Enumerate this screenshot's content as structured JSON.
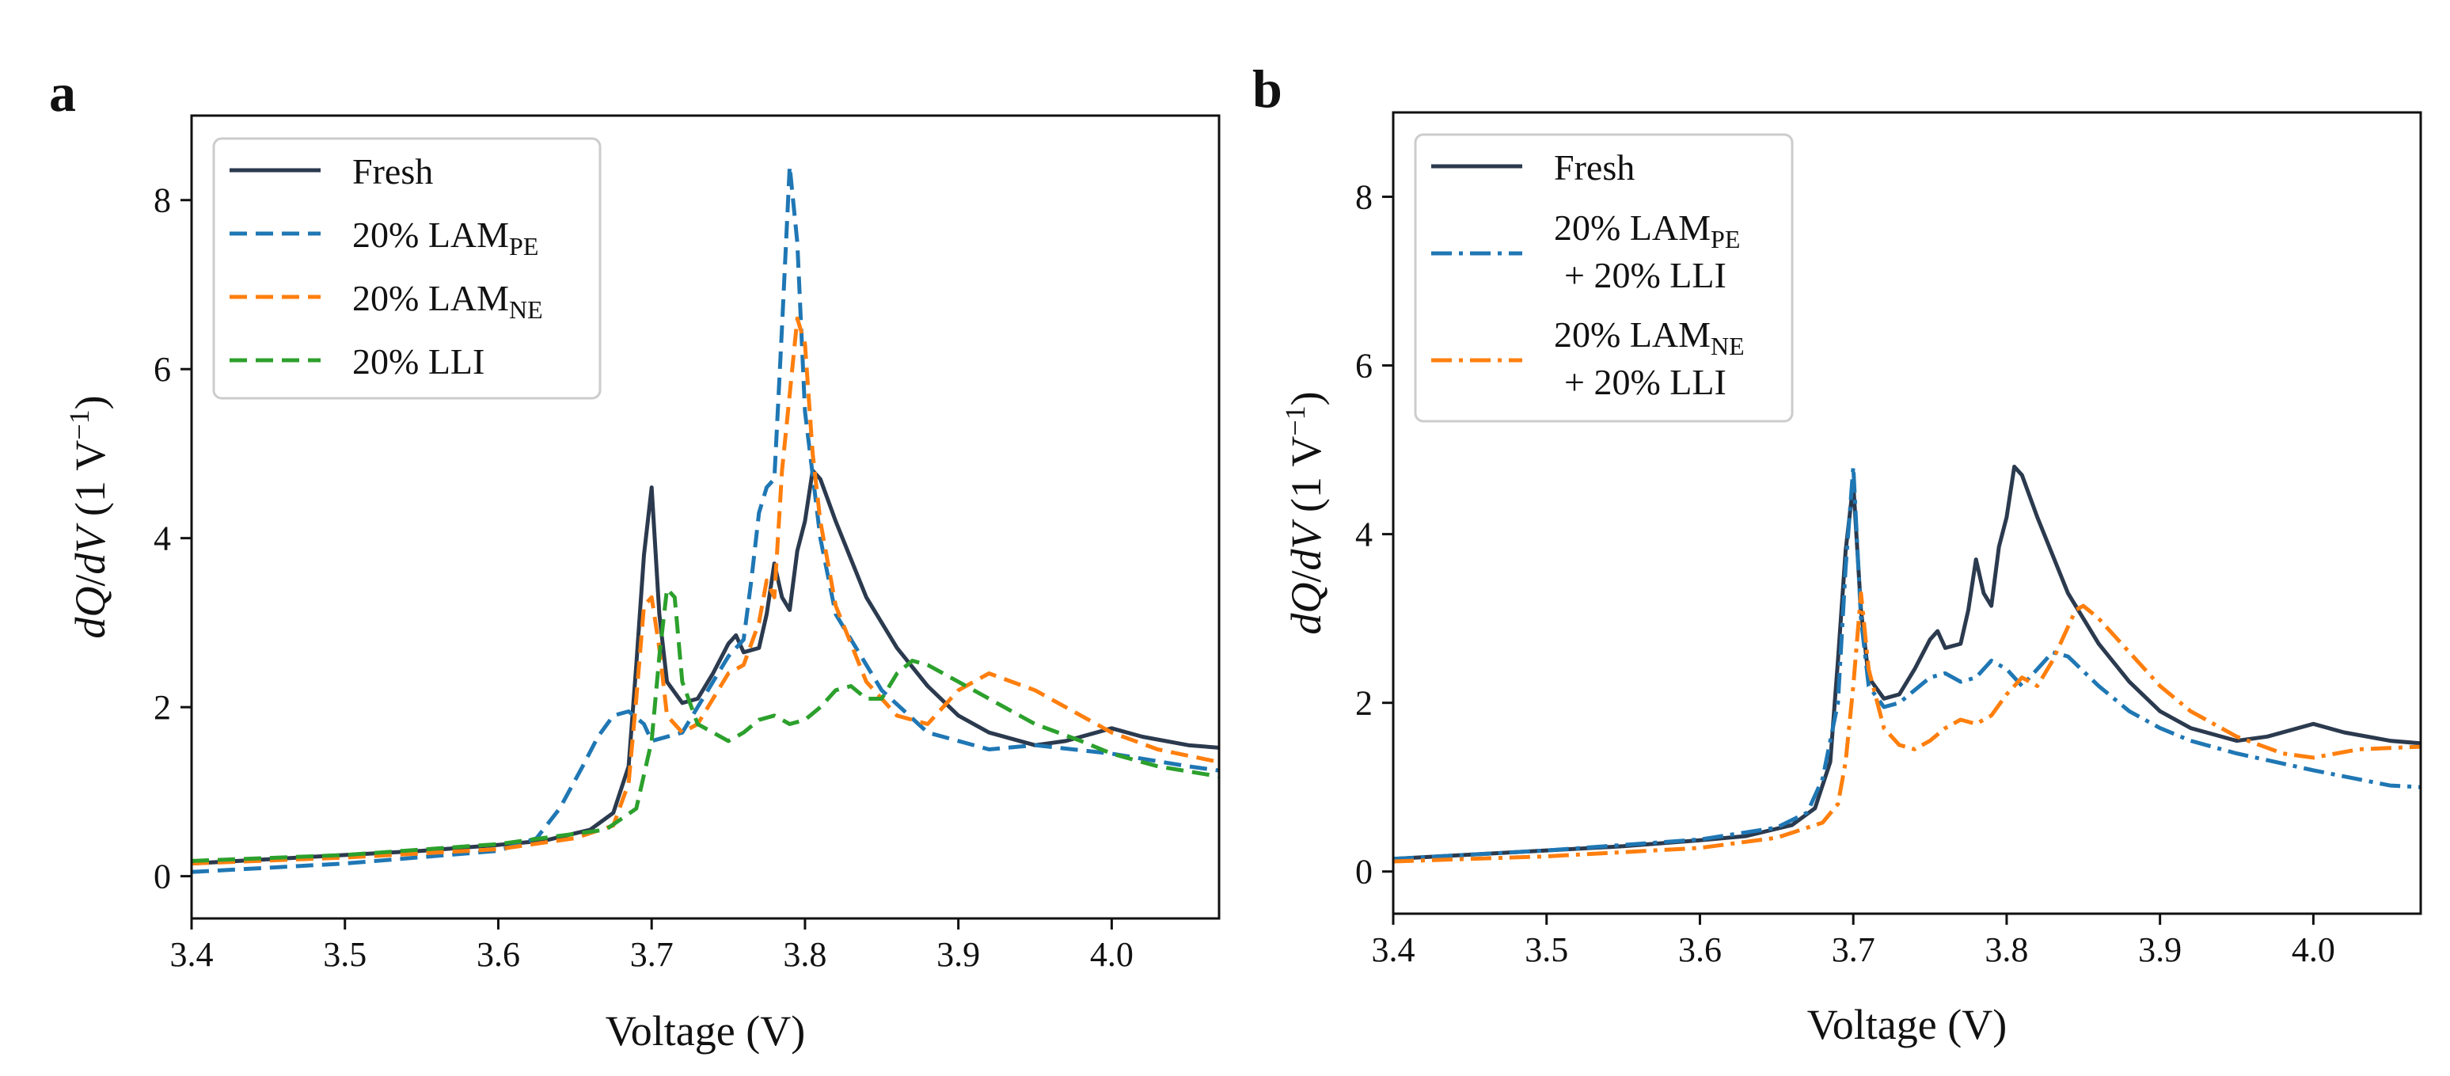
{
  "figure": {
    "description_panels": [
      "a",
      "b"
    ]
  },
  "colors": {
    "fresh": "#2b3a4e",
    "blue": "#1f77b4",
    "orange": "#ff7f0e",
    "green": "#2ca02c"
  },
  "chart_data": [
    {
      "panel": "a",
      "type": "line",
      "xlabel": "Voltage (V)",
      "ylabel_text": "dQ/dV (1 V⁻¹)",
      "ylabel_parts": {
        "num": "dQ",
        "slash": "/",
        "den": "dV",
        "units": " (1 V",
        "exp": "−1",
        "close": ")"
      },
      "xlim": [
        3.4,
        4.07
      ],
      "ylim": [
        -0.5,
        9.0
      ],
      "xticks": [
        3.4,
        3.5,
        3.6,
        3.7,
        3.8,
        3.9,
        4.0
      ],
      "yticks": [
        0,
        2,
        4,
        6,
        8
      ],
      "legend_position": "upper-left",
      "series": [
        {
          "name": "Fresh",
          "legend_main": "Fresh",
          "legend_sub": "",
          "color": "#2b3a4e",
          "style": "solid",
          "x": [
            3.4,
            3.5,
            3.55,
            3.6,
            3.63,
            3.66,
            3.675,
            3.685,
            3.69,
            3.695,
            3.7,
            3.705,
            3.71,
            3.72,
            3.73,
            3.74,
            3.75,
            3.755,
            3.76,
            3.77,
            3.775,
            3.78,
            3.785,
            3.79,
            3.795,
            3.8,
            3.805,
            3.81,
            3.82,
            3.84,
            3.86,
            3.88,
            3.9,
            3.92,
            3.95,
            3.97,
            3.99,
            4.0,
            4.02,
            4.05,
            4.07
          ],
          "y": [
            0.15,
            0.25,
            0.3,
            0.37,
            0.42,
            0.55,
            0.75,
            1.3,
            2.5,
            3.8,
            4.6,
            3.1,
            2.3,
            2.05,
            2.1,
            2.4,
            2.75,
            2.85,
            2.65,
            2.7,
            3.1,
            3.7,
            3.3,
            3.15,
            3.85,
            4.2,
            4.8,
            4.7,
            4.2,
            3.3,
            2.7,
            2.25,
            1.9,
            1.7,
            1.55,
            1.6,
            1.7,
            1.75,
            1.65,
            1.55,
            1.52
          ]
        },
        {
          "name": "20% LAM_PE",
          "legend_main": "20% LAM",
          "legend_sub": "PE",
          "color": "#1f77b4",
          "style": "dashed",
          "x": [
            3.4,
            3.5,
            3.6,
            3.625,
            3.64,
            3.655,
            3.665,
            3.675,
            3.685,
            3.695,
            3.7,
            3.72,
            3.74,
            3.75,
            3.76,
            3.765,
            3.77,
            3.775,
            3.78,
            3.785,
            3.79,
            3.795,
            3.8,
            3.81,
            3.82,
            3.85,
            3.88,
            3.92,
            3.95,
            4.0,
            4.05,
            4.07
          ],
          "y": [
            0.05,
            0.15,
            0.3,
            0.45,
            0.8,
            1.3,
            1.65,
            1.9,
            1.95,
            1.8,
            1.6,
            1.7,
            2.3,
            2.6,
            2.8,
            3.5,
            4.3,
            4.6,
            4.7,
            6.5,
            8.4,
            7.5,
            5.5,
            4.0,
            3.1,
            2.2,
            1.7,
            1.5,
            1.55,
            1.45,
            1.3,
            1.25
          ]
        },
        {
          "name": "20% LAM_NE",
          "legend_main": "20% LAM",
          "legend_sub": "NE",
          "color": "#ff7f0e",
          "style": "dashed",
          "x": [
            3.4,
            3.5,
            3.6,
            3.65,
            3.675,
            3.685,
            3.69,
            3.695,
            3.7,
            3.705,
            3.71,
            3.72,
            3.73,
            3.74,
            3.75,
            3.76,
            3.77,
            3.775,
            3.78,
            3.785,
            3.79,
            3.795,
            3.8,
            3.805,
            3.81,
            3.82,
            3.84,
            3.86,
            3.88,
            3.9,
            3.92,
            3.95,
            3.98,
            4.0,
            4.03,
            4.07
          ],
          "y": [
            0.15,
            0.22,
            0.32,
            0.45,
            0.6,
            1.1,
            2.1,
            3.2,
            3.3,
            2.7,
            1.9,
            1.7,
            1.8,
            2.1,
            2.4,
            2.5,
            3.0,
            3.5,
            3.3,
            4.8,
            5.7,
            6.6,
            6.3,
            5.0,
            4.2,
            3.2,
            2.3,
            1.9,
            1.8,
            2.2,
            2.4,
            2.2,
            1.9,
            1.7,
            1.5,
            1.35
          ]
        },
        {
          "name": "20% LLI",
          "legend_main": "20% LLI",
          "legend_sub": "",
          "color": "#2ca02c",
          "style": "dashed",
          "x": [
            3.4,
            3.5,
            3.6,
            3.67,
            3.69,
            3.7,
            3.705,
            3.71,
            3.715,
            3.72,
            3.73,
            3.75,
            3.76,
            3.77,
            3.78,
            3.79,
            3.8,
            3.81,
            3.82,
            3.83,
            3.84,
            3.85,
            3.86,
            3.87,
            3.88,
            3.9,
            3.92,
            3.95,
            3.98,
            4.0,
            4.03,
            4.07
          ],
          "y": [
            0.18,
            0.25,
            0.38,
            0.55,
            0.8,
            1.6,
            2.6,
            3.4,
            3.3,
            2.3,
            1.8,
            1.6,
            1.7,
            1.85,
            1.9,
            1.8,
            1.85,
            2.0,
            2.2,
            2.25,
            2.1,
            2.1,
            2.4,
            2.55,
            2.5,
            2.3,
            2.1,
            1.8,
            1.6,
            1.45,
            1.3,
            1.18
          ]
        }
      ]
    },
    {
      "panel": "b",
      "type": "line",
      "xlabel": "Voltage (V)",
      "ylabel_text": "dQ/dV (1 V⁻¹)",
      "ylabel_parts": {
        "num": "dQ",
        "slash": "/",
        "den": "dV",
        "units": " (1 V",
        "exp": "−1",
        "close": ")"
      },
      "xlim": [
        3.4,
        4.07
      ],
      "ylim": [
        -0.5,
        9.0
      ],
      "xticks": [
        3.4,
        3.5,
        3.6,
        3.7,
        3.8,
        3.9,
        4.0
      ],
      "yticks": [
        0,
        2,
        4,
        6,
        8
      ],
      "legend_position": "upper-left",
      "series": [
        {
          "name": "Fresh",
          "legend_main": "Fresh",
          "legend_sub": "",
          "legend_line2": "",
          "color": "#2b3a4e",
          "style": "solid",
          "x": [
            3.4,
            3.5,
            3.55,
            3.6,
            3.63,
            3.66,
            3.675,
            3.685,
            3.69,
            3.695,
            3.7,
            3.705,
            3.71,
            3.72,
            3.73,
            3.74,
            3.75,
            3.755,
            3.76,
            3.77,
            3.775,
            3.78,
            3.785,
            3.79,
            3.795,
            3.8,
            3.805,
            3.81,
            3.82,
            3.84,
            3.86,
            3.88,
            3.9,
            3.92,
            3.95,
            3.97,
            3.99,
            4.0,
            4.02,
            4.05,
            4.07
          ],
          "y": [
            0.15,
            0.25,
            0.3,
            0.37,
            0.42,
            0.55,
            0.75,
            1.3,
            2.5,
            3.8,
            4.6,
            3.1,
            2.3,
            2.05,
            2.1,
            2.4,
            2.75,
            2.85,
            2.65,
            2.7,
            3.1,
            3.7,
            3.3,
            3.15,
            3.85,
            4.2,
            4.8,
            4.7,
            4.2,
            3.3,
            2.7,
            2.25,
            1.9,
            1.7,
            1.55,
            1.6,
            1.7,
            1.75,
            1.65,
            1.55,
            1.52
          ]
        },
        {
          "name": "20% LAM_PE + 20% LLI",
          "legend_main": "20% LAM",
          "legend_sub": "PE",
          "legend_line2": "+ 20% LLI",
          "color": "#1f77b4",
          "style": "dashdot",
          "x": [
            3.4,
            3.5,
            3.6,
            3.65,
            3.67,
            3.68,
            3.69,
            3.695,
            3.7,
            3.705,
            3.71,
            3.72,
            3.73,
            3.74,
            3.75,
            3.76,
            3.77,
            3.78,
            3.79,
            3.8,
            3.81,
            3.82,
            3.83,
            3.84,
            3.86,
            3.88,
            3.9,
            3.92,
            3.95,
            4.0,
            4.05,
            4.07
          ],
          "y": [
            0.15,
            0.25,
            0.38,
            0.52,
            0.7,
            1.1,
            2.0,
            3.6,
            4.8,
            3.0,
            2.2,
            1.95,
            2.0,
            2.15,
            2.3,
            2.35,
            2.25,
            2.3,
            2.5,
            2.4,
            2.2,
            2.4,
            2.6,
            2.55,
            2.2,
            1.9,
            1.7,
            1.55,
            1.4,
            1.2,
            1.02,
            1.0
          ]
        },
        {
          "name": "20% LAM_NE + 20% LLI",
          "legend_main": "20% LAM",
          "legend_sub": "NE",
          "legend_line2": "+ 20% LLI",
          "color": "#ff7f0e",
          "style": "dashdot",
          "x": [
            3.4,
            3.5,
            3.6,
            3.65,
            3.68,
            3.69,
            3.695,
            3.7,
            3.705,
            3.71,
            3.72,
            3.73,
            3.74,
            3.75,
            3.76,
            3.77,
            3.78,
            3.79,
            3.8,
            3.81,
            3.82,
            3.83,
            3.84,
            3.845,
            3.85,
            3.86,
            3.88,
            3.9,
            3.92,
            3.95,
            3.98,
            4.0,
            4.03,
            4.07
          ],
          "y": [
            0.12,
            0.18,
            0.28,
            0.4,
            0.58,
            0.8,
            1.3,
            2.2,
            3.3,
            2.4,
            1.7,
            1.5,
            1.45,
            1.55,
            1.7,
            1.8,
            1.75,
            1.85,
            2.1,
            2.3,
            2.2,
            2.5,
            2.9,
            3.1,
            3.15,
            3.0,
            2.6,
            2.2,
            1.9,
            1.6,
            1.4,
            1.35,
            1.45,
            1.48
          ]
        }
      ]
    }
  ]
}
